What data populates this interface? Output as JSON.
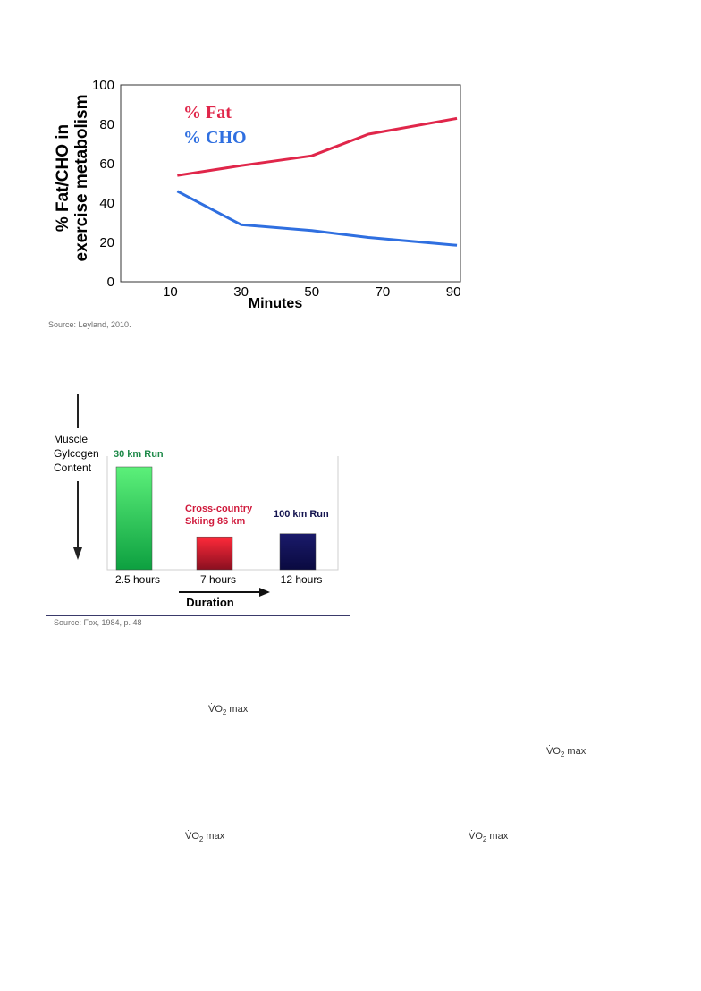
{
  "figure1": {
    "chart_data": {
      "type": "line",
      "x": [
        12,
        30,
        50,
        66,
        91
      ],
      "series": [
        {
          "name": "% Fat",
          "color": "#e0264a",
          "values": [
            54,
            59,
            64,
            75,
            83
          ]
        },
        {
          "name": "% CHO",
          "color": "#2f6fe0",
          "values": [
            46,
            29,
            26,
            22.5,
            18.5
          ]
        }
      ],
      "xlabel": "Minutes",
      "ylabel_lines": [
        "% Fat/CHO in",
        "exercise metabolism"
      ],
      "xticks": [
        "10",
        "30",
        "50",
        "70",
        "90"
      ],
      "yticks": [
        "0",
        "20",
        "40",
        "60",
        "80",
        "100"
      ],
      "xlim": [
        -4,
        92
      ],
      "ylim": [
        0,
        100
      ],
      "grid": false,
      "legend": "top-left"
    },
    "source": "Source: Leyland, 2010."
  },
  "figure2": {
    "chart_data": {
      "type": "bar",
      "categories": [
        "2.5 hours",
        "7 hours",
        "12 hours"
      ],
      "values": [
        100,
        32,
        35
      ],
      "bar_labels": [
        "30 km Run",
        "Cross-country Skiing 86 km",
        "100 km Run"
      ],
      "bar_label_colors": [
        "#1f8a4a",
        "#d01a3c",
        "#13134f"
      ],
      "ylabel_lines": [
        "Muscle",
        "Gylcogen",
        "Content"
      ],
      "xlabel": "Duration",
      "grid": false
    },
    "source": "Source: Fox, 1984, p. 48"
  },
  "vo2_label": "VO",
  "vo2_sub": "2",
  "vo2_suffix": " max",
  "vo2_dot": "·"
}
